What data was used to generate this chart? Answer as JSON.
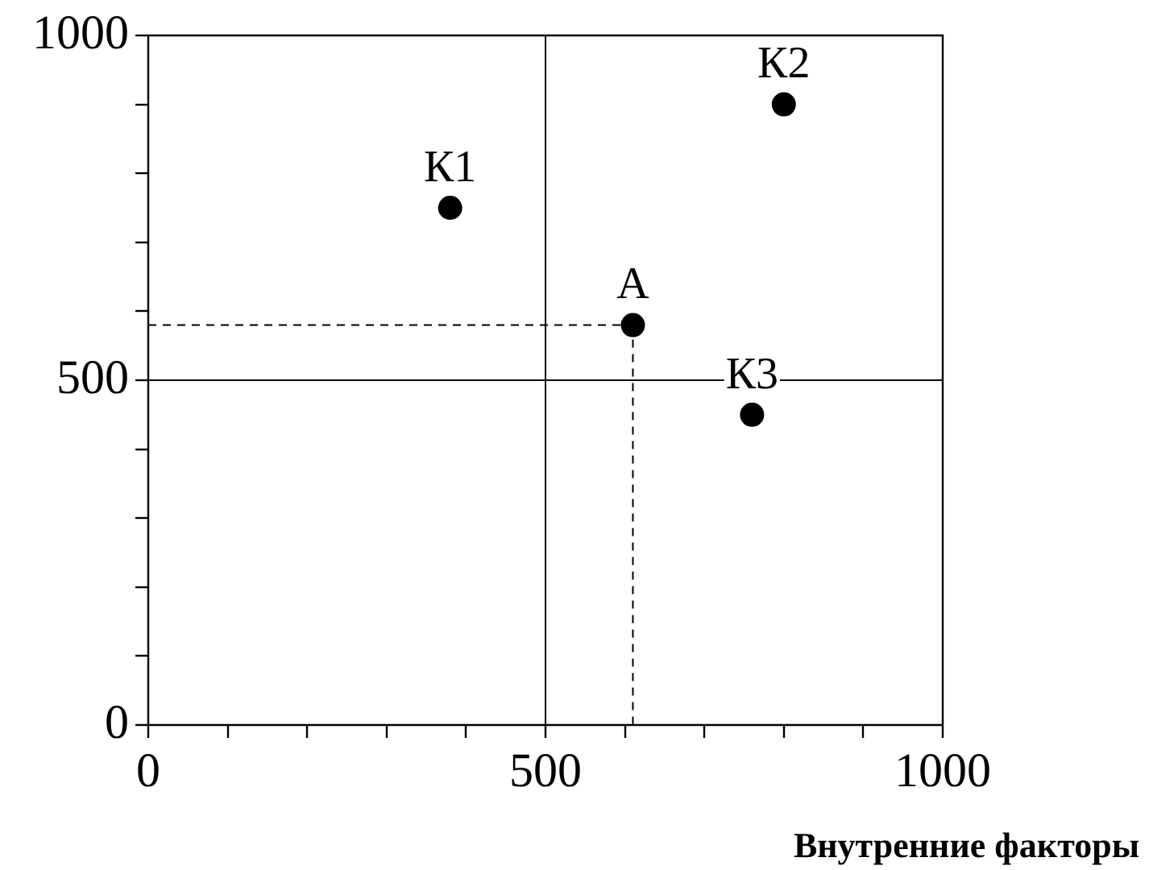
{
  "chart_data": {
    "type": "scatter",
    "xlabel": "Внутренние факторы",
    "xlim": [
      0,
      1000
    ],
    "ylim": [
      0,
      1000
    ],
    "xticks": [
      0,
      {
        "value": 100,
        "label": null
      },
      {
        "value": 200,
        "label": null
      },
      {
        "value": 300,
        "label": null
      },
      {
        "value": 400,
        "label": null
      },
      500,
      {
        "value": 600,
        "label": null
      },
      {
        "value": 700,
        "label": null
      },
      {
        "value": 800,
        "label": null
      },
      {
        "value": 900,
        "label": null
      },
      1000
    ],
    "yticks": [
      0,
      {
        "value": 100,
        "label": null
      },
      {
        "value": 200,
        "label": null
      },
      {
        "value": 300,
        "label": null
      },
      {
        "value": 400,
        "label": null
      },
      500,
      {
        "value": 600,
        "label": null
      },
      {
        "value": 700,
        "label": null
      },
      {
        "value": 800,
        "label": null
      },
      {
        "value": 900,
        "label": null
      },
      1000
    ],
    "grid": false,
    "legend": false,
    "marker": "circle",
    "series": [
      {
        "color": "#000000",
        "x": [
          380,
          800,
          610,
          760
        ],
        "values": [
          750,
          900,
          580,
          450
        ]
      },
      {
        "type": "line",
        "color": "#000000",
        "marker": "none",
        "line_style": "dashed",
        "x": [
          0,
          610
        ],
        "values": [
          580,
          580
        ]
      },
      {
        "type": "line",
        "color": "#000000",
        "marker": "none",
        "line_style": "dashed",
        "x": [
          610,
          610
        ],
        "values": [
          580,
          0
        ]
      },
      {
        "type": "line",
        "color": "#000000",
        "marker": "none",
        "line_style": "solid",
        "x": [
          500,
          500
        ],
        "values": [
          0,
          1000
        ]
      },
      {
        "type": "line",
        "color": "#000000",
        "marker": "none",
        "line_style": "solid",
        "x": [
          0,
          1000
        ],
        "values": [
          500,
          500
        ]
      }
    ],
    "annotations": [
      {
        "text": "К1",
        "x": 380,
        "y": 750
      },
      {
        "text": "К2",
        "x": 800,
        "y": 900
      },
      {
        "text": "А",
        "x": 610,
        "y": 580
      },
      {
        "text": "К3",
        "x": 760,
        "y": 450
      }
    ]
  }
}
